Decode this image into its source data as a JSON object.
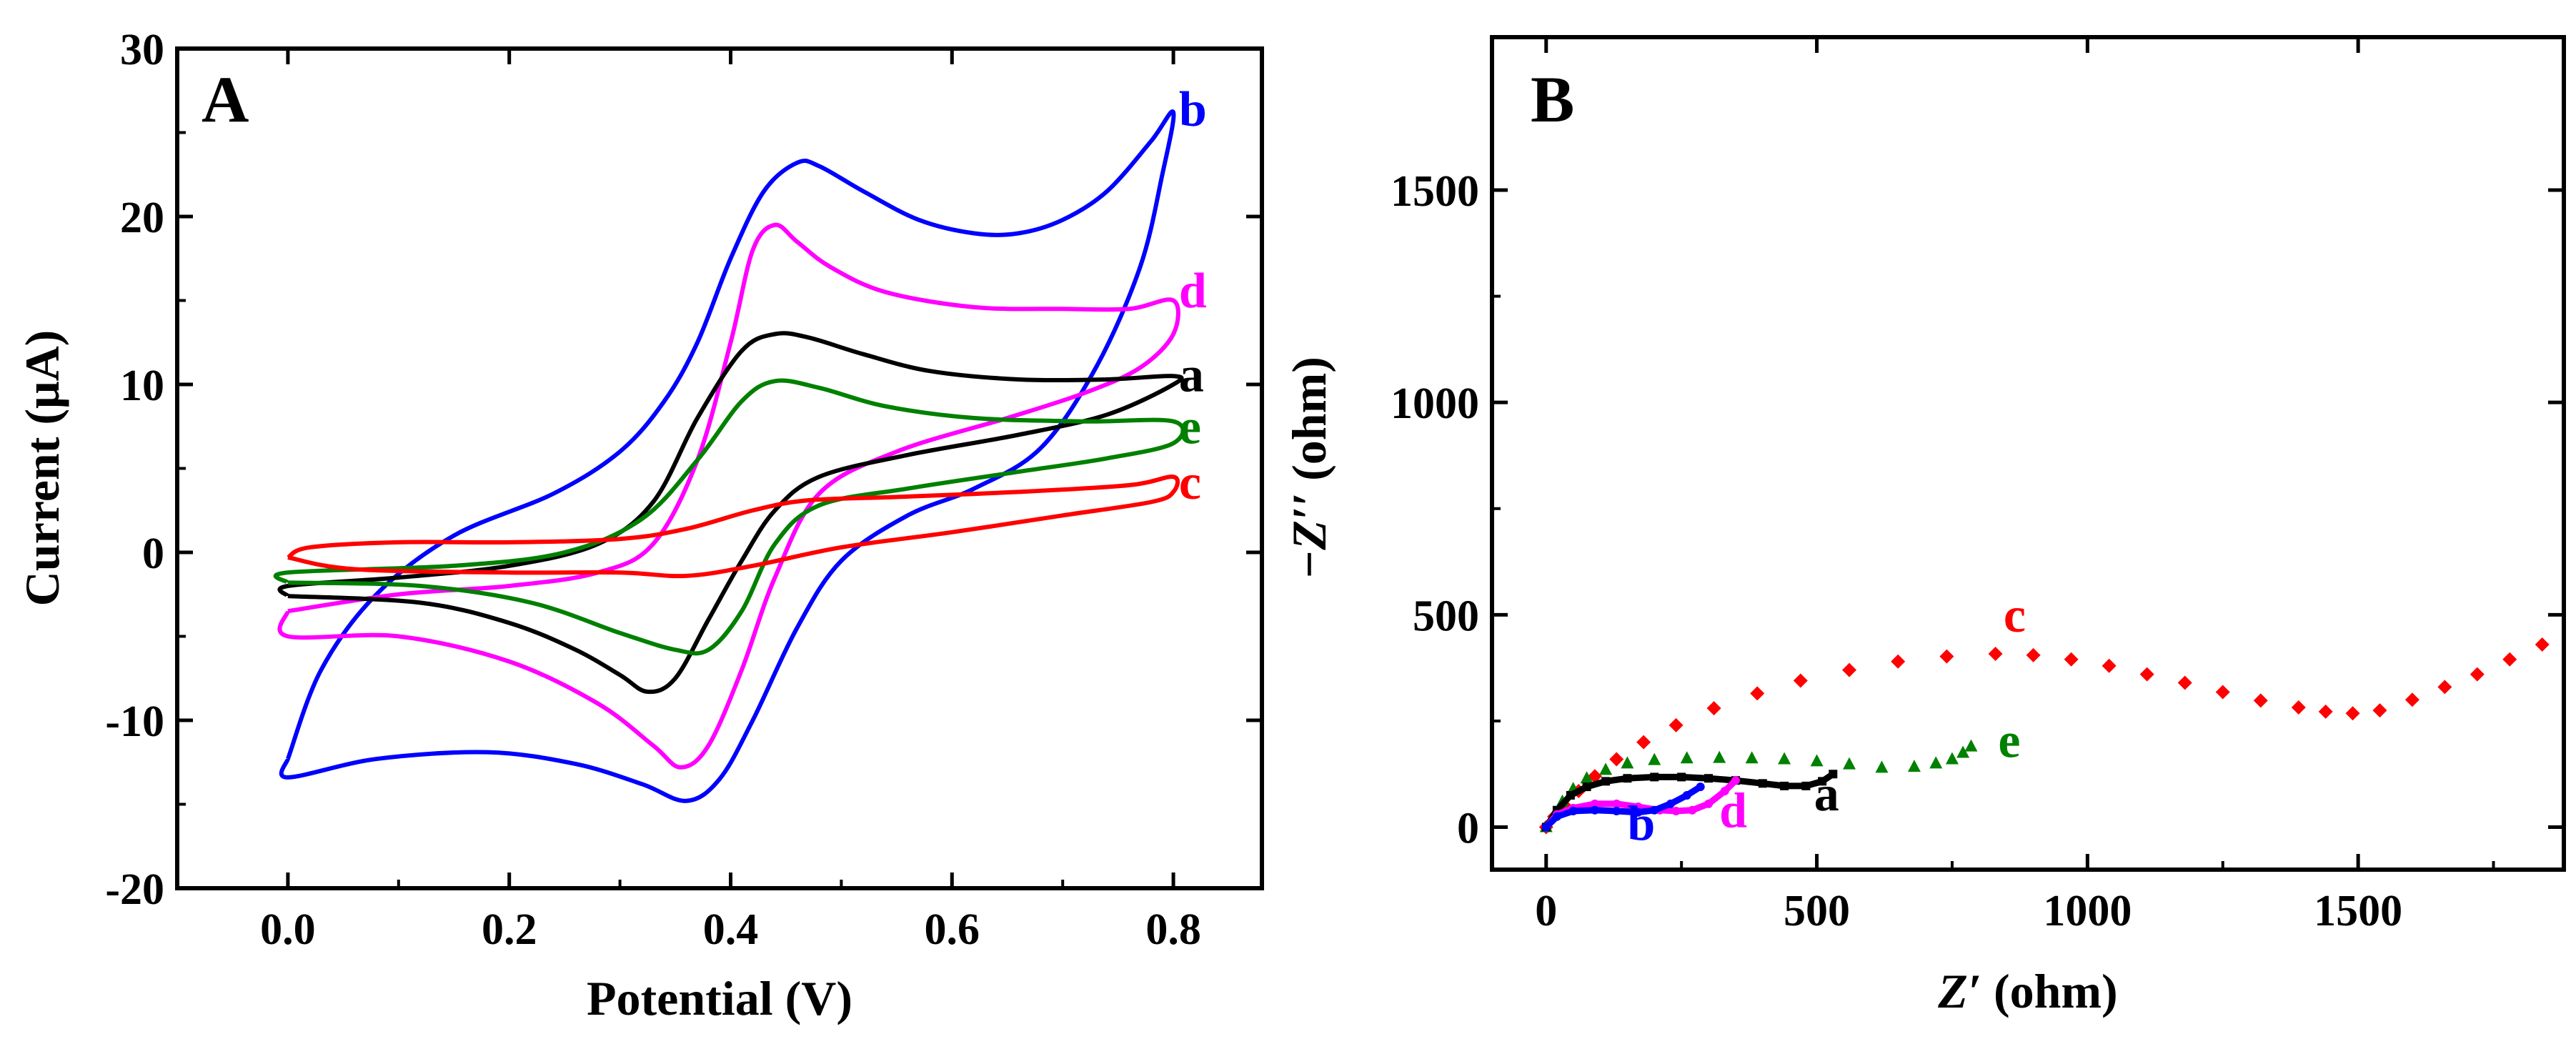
{
  "chart_data": [
    {
      "panel": "A",
      "type": "line",
      "xlabel": "Potential (V)",
      "ylabel": "Current (μA)",
      "xlim": [
        -0.1,
        0.88
      ],
      "ylim": [
        -20,
        30
      ],
      "xticks": [
        0.0,
        0.2,
        0.4,
        0.6,
        0.8
      ],
      "xtick_labels": [
        "0.0",
        "0.2",
        "0.4",
        "0.6",
        "0.8"
      ],
      "yticks": [
        -20,
        -10,
        0,
        10,
        20,
        30
      ],
      "ytick_labels": [
        "-20",
        "-10",
        "0",
        "10",
        "20",
        "30"
      ],
      "series": [
        {
          "name": "b",
          "color": "#0000ff",
          "points": [
            [
              0.0,
              -12.3
            ],
            [
              0.0,
              -13.4
            ],
            [
              0.08,
              -12.3
            ],
            [
              0.18,
              -11.9
            ],
            [
              0.26,
              -12.6
            ],
            [
              0.32,
              -13.8
            ],
            [
              0.36,
              -14.8
            ],
            [
              0.39,
              -13.5
            ],
            [
              0.42,
              -10.0
            ],
            [
              0.46,
              -4.5
            ],
            [
              0.5,
              -0.5
            ],
            [
              0.56,
              2.2
            ],
            [
              0.62,
              3.8
            ],
            [
              0.68,
              6.2
            ],
            [
              0.73,
              11.0
            ],
            [
              0.77,
              17.0
            ],
            [
              0.79,
              22.5
            ],
            [
              0.8,
              26.2
            ],
            [
              0.78,
              24.5
            ],
            [
              0.74,
              21.5
            ],
            [
              0.7,
              19.8
            ],
            [
              0.66,
              19.0
            ],
            [
              0.62,
              19.0
            ],
            [
              0.57,
              19.8
            ],
            [
              0.52,
              21.5
            ],
            [
              0.48,
              23.0
            ],
            [
              0.46,
              23.2
            ],
            [
              0.43,
              21.5
            ],
            [
              0.4,
              17.5
            ],
            [
              0.37,
              12.5
            ],
            [
              0.34,
              9.0
            ],
            [
              0.3,
              6.0
            ],
            [
              0.24,
              3.5
            ],
            [
              0.15,
              1.0
            ],
            [
              0.08,
              -2.5
            ],
            [
              0.03,
              -7.0
            ],
            [
              0.0,
              -12.3
            ]
          ]
        },
        {
          "name": "d",
          "color": "#ff00ff",
          "points": [
            [
              0.0,
              -3.5
            ],
            [
              0.0,
              -5.0
            ],
            [
              0.1,
              -5.0
            ],
            [
              0.2,
              -6.5
            ],
            [
              0.28,
              -9.0
            ],
            [
              0.33,
              -11.5
            ],
            [
              0.355,
              -12.8
            ],
            [
              0.38,
              -11.5
            ],
            [
              0.41,
              -7.0
            ],
            [
              0.44,
              -1.5
            ],
            [
              0.48,
              3.5
            ],
            [
              0.55,
              6.0
            ],
            [
              0.65,
              8.0
            ],
            [
              0.72,
              9.5
            ],
            [
              0.77,
              11.0
            ],
            [
              0.8,
              13.0
            ],
            [
              0.8,
              15.0
            ],
            [
              0.76,
              14.5
            ],
            [
              0.7,
              14.5
            ],
            [
              0.62,
              14.6
            ],
            [
              0.54,
              15.5
            ],
            [
              0.49,
              17.0
            ],
            [
              0.46,
              18.5
            ],
            [
              0.44,
              19.5
            ],
            [
              0.42,
              18.0
            ],
            [
              0.4,
              12.5
            ],
            [
              0.37,
              5.5
            ],
            [
              0.33,
              0.5
            ],
            [
              0.28,
              -1.2
            ],
            [
              0.2,
              -2.0
            ],
            [
              0.1,
              -2.5
            ],
            [
              0.0,
              -3.5
            ]
          ]
        },
        {
          "name": "a",
          "color": "#000000",
          "points": [
            [
              0.0,
              -2.6
            ],
            [
              0.12,
              -3.0
            ],
            [
              0.2,
              -4.2
            ],
            [
              0.26,
              -5.8
            ],
            [
              0.3,
              -7.3
            ],
            [
              0.325,
              -8.3
            ],
            [
              0.35,
              -7.5
            ],
            [
              0.38,
              -4.0
            ],
            [
              0.41,
              -0.5
            ],
            [
              0.44,
              2.5
            ],
            [
              0.48,
              4.5
            ],
            [
              0.56,
              5.8
            ],
            [
              0.66,
              7.0
            ],
            [
              0.74,
              8.2
            ],
            [
              0.8,
              10.0
            ],
            [
              0.8,
              10.5
            ],
            [
              0.74,
              10.3
            ],
            [
              0.66,
              10.3
            ],
            [
              0.58,
              10.8
            ],
            [
              0.52,
              11.8
            ],
            [
              0.47,
              12.8
            ],
            [
              0.44,
              13.0
            ],
            [
              0.41,
              12.0
            ],
            [
              0.37,
              8.0
            ],
            [
              0.33,
              3.0
            ],
            [
              0.28,
              0.5
            ],
            [
              0.2,
              -0.8
            ],
            [
              0.1,
              -1.5
            ],
            [
              0.0,
              -2.0
            ],
            [
              0.0,
              -2.6
            ]
          ]
        },
        {
          "name": "e",
          "color": "#008000",
          "points": [
            [
              0.0,
              -1.8
            ],
            [
              0.12,
              -2.0
            ],
            [
              0.22,
              -3.0
            ],
            [
              0.3,
              -4.8
            ],
            [
              0.35,
              -5.8
            ],
            [
              0.38,
              -5.8
            ],
            [
              0.41,
              -3.5
            ],
            [
              0.44,
              0.5
            ],
            [
              0.48,
              2.8
            ],
            [
              0.56,
              3.8
            ],
            [
              0.66,
              4.8
            ],
            [
              0.74,
              5.6
            ],
            [
              0.8,
              6.5
            ],
            [
              0.8,
              7.8
            ],
            [
              0.72,
              7.8
            ],
            [
              0.62,
              8.0
            ],
            [
              0.54,
              8.7
            ],
            [
              0.48,
              9.8
            ],
            [
              0.44,
              10.2
            ],
            [
              0.41,
              9.0
            ],
            [
              0.37,
              5.5
            ],
            [
              0.32,
              2.0
            ],
            [
              0.25,
              0.0
            ],
            [
              0.15,
              -0.8
            ],
            [
              0.0,
              -1.2
            ],
            [
              0.0,
              -1.8
            ]
          ]
        },
        {
          "name": "c",
          "color": "#ff0000",
          "points": [
            [
              0.0,
              -0.3
            ],
            [
              0.06,
              -1.0
            ],
            [
              0.2,
              -1.2
            ],
            [
              0.3,
              -1.2
            ],
            [
              0.36,
              -1.4
            ],
            [
              0.42,
              -0.8
            ],
            [
              0.5,
              0.3
            ],
            [
              0.6,
              1.2
            ],
            [
              0.7,
              2.2
            ],
            [
              0.78,
              3.0
            ],
            [
              0.8,
              3.6
            ],
            [
              0.8,
              4.5
            ],
            [
              0.76,
              4.0
            ],
            [
              0.66,
              3.6
            ],
            [
              0.55,
              3.3
            ],
            [
              0.47,
              3.1
            ],
            [
              0.42,
              2.5
            ],
            [
              0.36,
              1.4
            ],
            [
              0.3,
              0.8
            ],
            [
              0.2,
              0.6
            ],
            [
              0.1,
              0.6
            ],
            [
              0.02,
              0.3
            ],
            [
              0.0,
              -0.3
            ]
          ]
        }
      ],
      "labels": [
        {
          "text": "b",
          "color": "#0000ff",
          "at": [
            0.805,
            25.4
          ]
        },
        {
          "text": "d",
          "color": "#ff00ff",
          "at": [
            0.805,
            14.6
          ]
        },
        {
          "text": "a",
          "color": "#000000",
          "at": [
            0.805,
            9.6
          ]
        },
        {
          "text": "e",
          "color": "#008000",
          "at": [
            0.805,
            6.5
          ]
        },
        {
          "text": "c",
          "color": "#ff0000",
          "at": [
            0.805,
            3.2
          ]
        }
      ]
    },
    {
      "panel": "B",
      "type": "scatter",
      "xlabel_var": "Z′",
      "xlabel_unit": " (ohm)",
      "ylabel_var": "−Z′′",
      "ylabel_unit": " (ohm)",
      "xlim": [
        -100,
        1880
      ],
      "ylim": [
        -100,
        1860
      ],
      "xticks": [
        0,
        500,
        1000,
        1500
      ],
      "xtick_labels": [
        "0",
        "500",
        "1000",
        "1500"
      ],
      "yticks": [
        0,
        500,
        1000,
        1500
      ],
      "ytick_labels": [
        "0",
        "500",
        "1000",
        "1500"
      ],
      "series": [
        {
          "name": "c",
          "color": "#ff0000",
          "marker": "diamond",
          "points": [
            [
              0,
              0
            ],
            [
              15,
              25
            ],
            [
              35,
              50
            ],
            [
              60,
              85
            ],
            [
              90,
              120
            ],
            [
              130,
              160
            ],
            [
              180,
              200
            ],
            [
              240,
              240
            ],
            [
              310,
              280
            ],
            [
              390,
              315
            ],
            [
              470,
              345
            ],
            [
              560,
              370
            ],
            [
              650,
              390
            ],
            [
              740,
              402
            ],
            [
              830,
              408
            ],
            [
              900,
              405
            ],
            [
              970,
              395
            ],
            [
              1040,
              380
            ],
            [
              1110,
              360
            ],
            [
              1180,
              340
            ],
            [
              1250,
              318
            ],
            [
              1320,
              298
            ],
            [
              1390,
              282
            ],
            [
              1440,
              272
            ],
            [
              1490,
              268
            ],
            [
              1540,
              275
            ],
            [
              1600,
              300
            ],
            [
              1660,
              330
            ],
            [
              1720,
              360
            ],
            [
              1780,
              395
            ],
            [
              1840,
              430
            ]
          ]
        },
        {
          "name": "e",
          "color": "#008000",
          "marker": "triangle",
          "points": [
            [
              0,
              0
            ],
            [
              15,
              30
            ],
            [
              30,
              60
            ],
            [
              50,
              90
            ],
            [
              75,
              115
            ],
            [
              110,
              135
            ],
            [
              150,
              150
            ],
            [
              200,
              158
            ],
            [
              260,
              162
            ],
            [
              320,
              163
            ],
            [
              380,
              162
            ],
            [
              440,
              160
            ],
            [
              500,
              155
            ],
            [
              560,
              148
            ],
            [
              620,
              140
            ],
            [
              680,
              142
            ],
            [
              720,
              150
            ],
            [
              750,
              160
            ],
            [
              770,
              175
            ],
            [
              785,
              190
            ]
          ]
        },
        {
          "name": "a",
          "color": "#000000",
          "marker": "square",
          "points": [
            [
              0,
              0
            ],
            [
              20,
              40
            ],
            [
              45,
              75
            ],
            [
              75,
              95
            ],
            [
              110,
              108
            ],
            [
              150,
              115
            ],
            [
              200,
              118
            ],
            [
              250,
              118
            ],
            [
              300,
              115
            ],
            [
              350,
              110
            ],
            [
              400,
              103
            ],
            [
              440,
              97
            ],
            [
              480,
              97
            ],
            [
              510,
              108
            ],
            [
              530,
              125
            ]
          ]
        },
        {
          "name": "d",
          "color": "#ff00ff",
          "marker": "circle",
          "points": [
            [
              0,
              0
            ],
            [
              20,
              30
            ],
            [
              50,
              45
            ],
            [
              90,
              55
            ],
            [
              130,
              55
            ],
            [
              170,
              48
            ],
            [
              210,
              40
            ],
            [
              240,
              38
            ],
            [
              270,
              40
            ],
            [
              300,
              55
            ],
            [
              330,
              85
            ],
            [
              350,
              110
            ]
          ]
        },
        {
          "name": "b",
          "color": "#0000ff",
          "marker": "circle",
          "points": [
            [
              0,
              0
            ],
            [
              20,
              25
            ],
            [
              50,
              38
            ],
            [
              90,
              40
            ],
            [
              130,
              38
            ],
            [
              170,
              35
            ],
            [
              200,
              40
            ],
            [
              230,
              55
            ],
            [
              260,
              75
            ],
            [
              285,
              95
            ]
          ]
        }
      ],
      "labels": [
        {
          "text": "c",
          "color": "#ff0000",
          "at": [
            845,
            460
          ]
        },
        {
          "text": "e",
          "color": "#008000",
          "at": [
            835,
            165
          ]
        },
        {
          "text": "a",
          "color": "#000000",
          "at": [
            495,
            40
          ]
        },
        {
          "text": "d",
          "color": "#ff00ff",
          "at": [
            320,
            0
          ]
        },
        {
          "text": "b",
          "color": "#0000ff",
          "at": [
            150,
            -30
          ]
        }
      ]
    }
  ],
  "panels": {
    "A": {
      "letter": "A"
    },
    "B": {
      "letter": "B"
    }
  }
}
